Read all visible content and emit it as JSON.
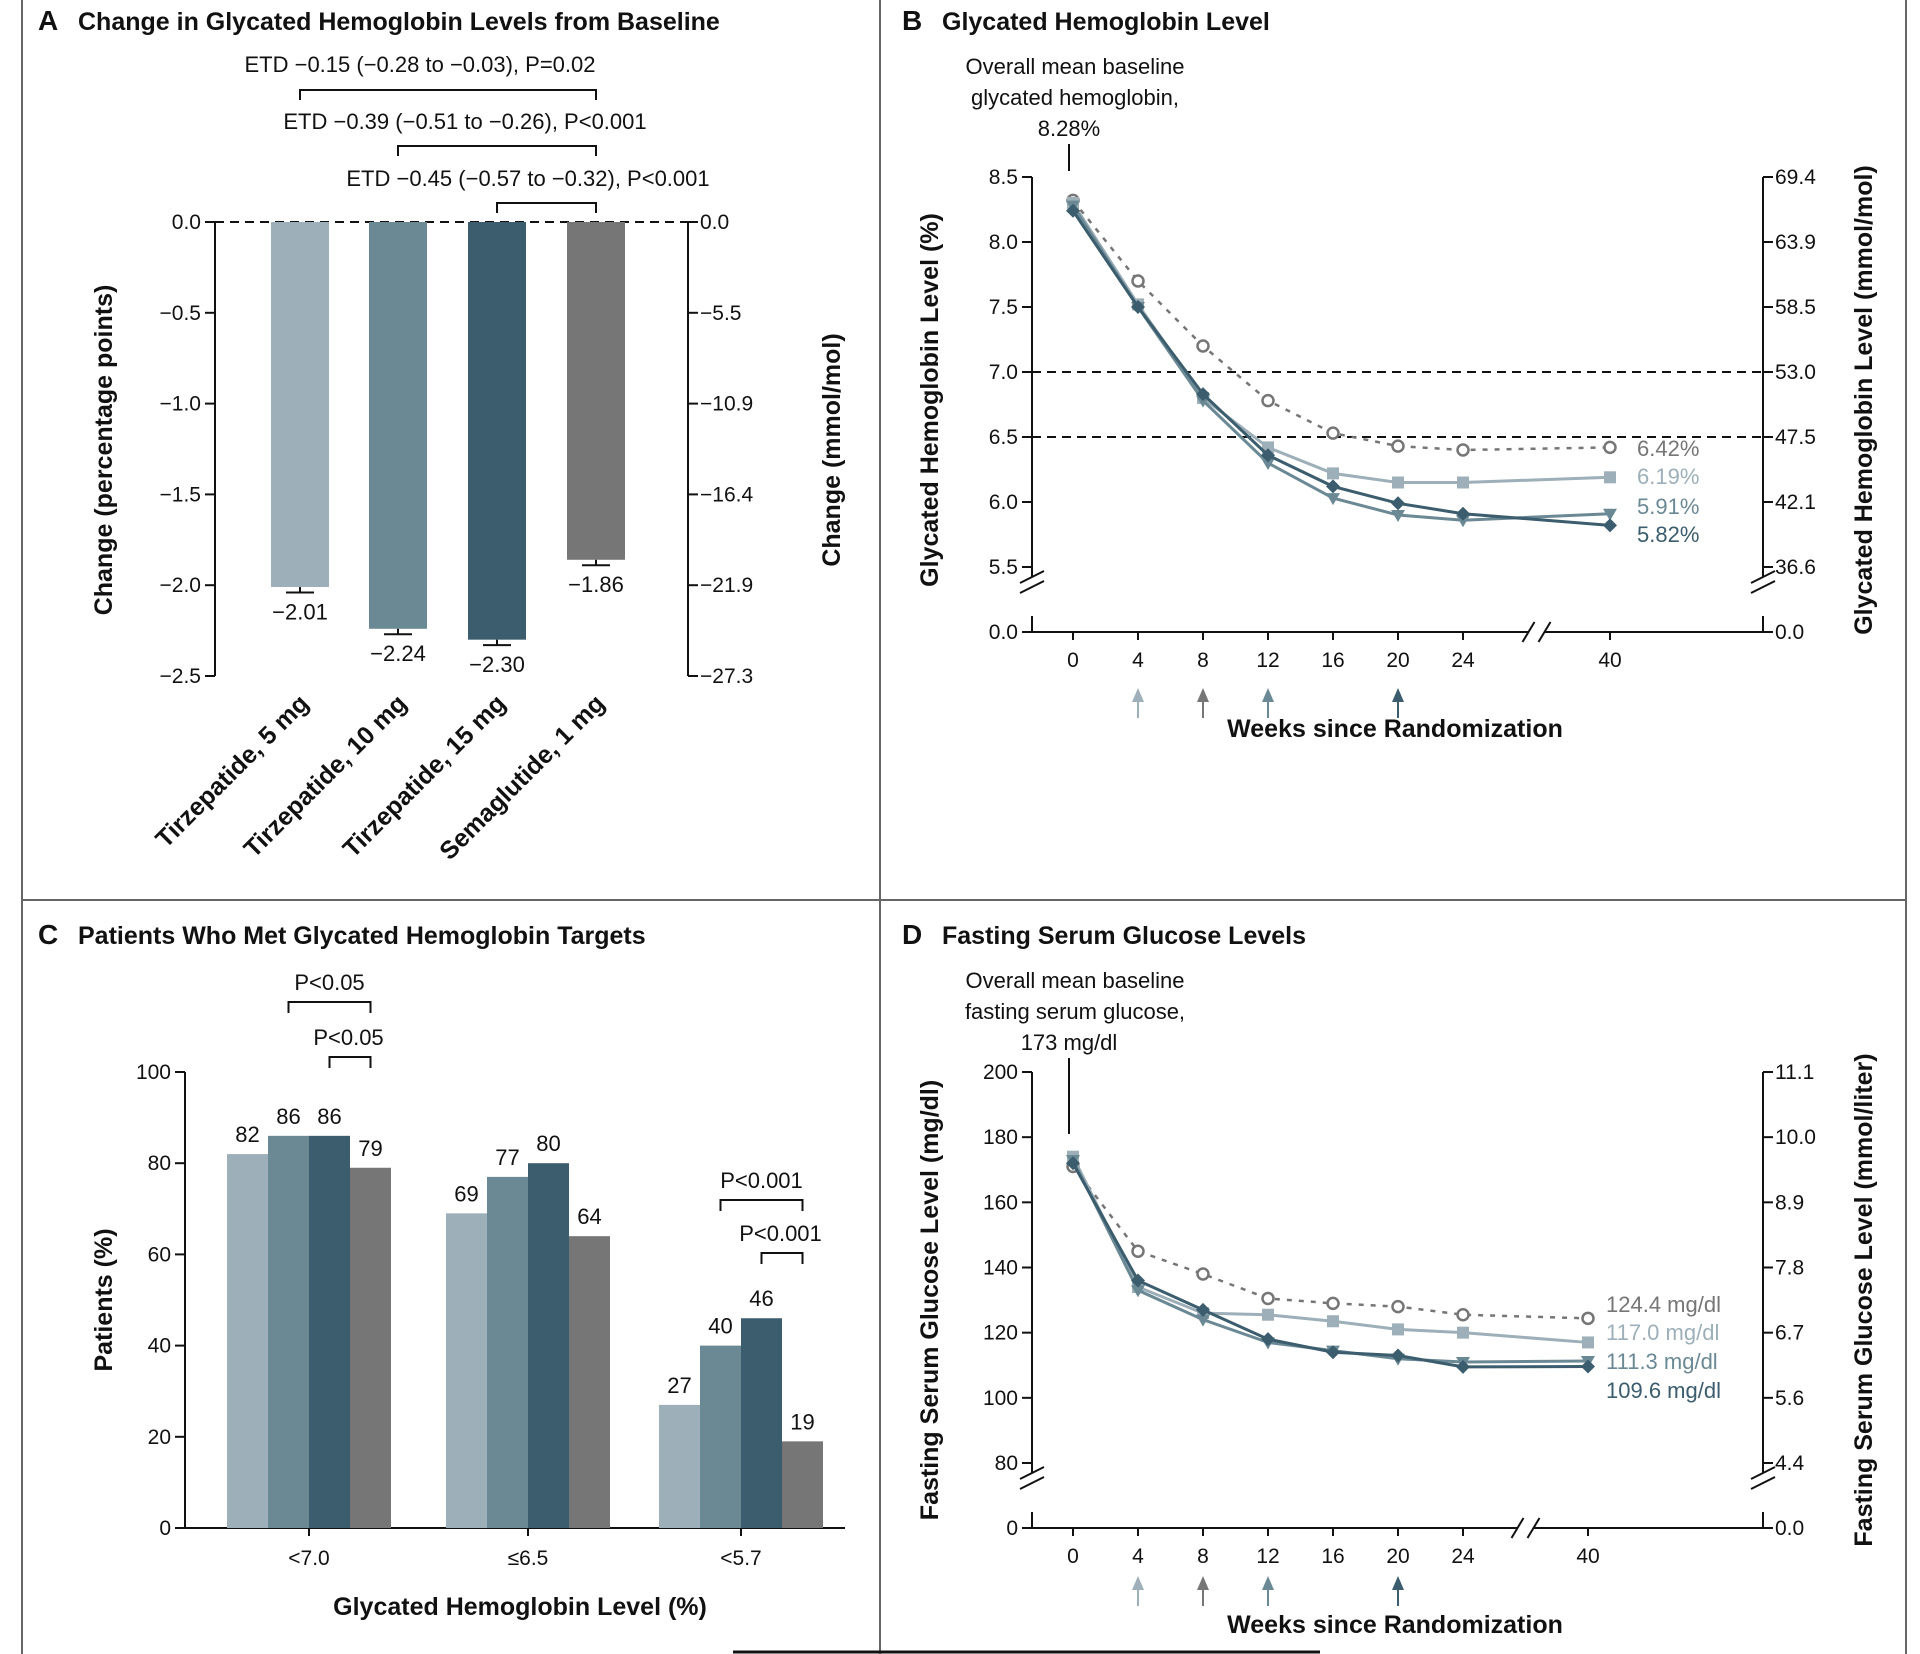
{
  "panels": {
    "A": {
      "letter": "A",
      "title": "Change in Glycated Hemoglobin Levels from Baseline"
    },
    "B": {
      "letter": "B",
      "title": "Glycated Hemoglobin Level"
    },
    "C": {
      "letter": "C",
      "title": "Patients Who Met Glycated Hemoglobin Targets"
    },
    "D": {
      "letter": "D",
      "title": "Fasting Serum Glucose Levels"
    }
  },
  "colors": {
    "tirzepatide_5mg": "#9dafb8",
    "tirzepatide_10mg": "#6b8995",
    "tirzepatide_15mg": "#3b5d6d",
    "semaglutide_1mg": "#767676",
    "border": "#666666"
  },
  "chart_data": [
    {
      "panel": "A",
      "type": "bar",
      "title": "Change in Glycated Hemoglobin Levels from Baseline",
      "categories": [
        "Tirzepatide, 5 mg",
        "Tirzepatide, 10 mg",
        "Tirzepatide, 15 mg",
        "Semaglutide, 1 mg"
      ],
      "values": [
        -2.01,
        -2.24,
        -2.3,
        -1.86
      ],
      "value_labels": [
        "−2.01",
        "−2.24",
        "−2.30",
        "−1.86"
      ],
      "errors": [
        0.03,
        0.03,
        0.03,
        0.03
      ],
      "ylabel": "Change (percentage points)",
      "ylim": [
        -2.5,
        0.0
      ],
      "yticks": [
        0.0,
        -0.5,
        -1.0,
        -1.5,
        -2.0,
        -2.5
      ],
      "ytick_labels": [
        "0.0",
        "−0.5",
        "−1.0",
        "−1.5",
        "−2.0",
        "−2.5"
      ],
      "y2label": "Change (mmol/mol)",
      "y2tick_labels": [
        "0.0",
        "−5.5",
        "−10.9",
        "−16.4",
        "−21.9",
        "−27.3"
      ],
      "comparisons": [
        {
          "text": "ETD −0.15 (−0.28 to −0.03), P=0.02",
          "from": 0,
          "to": 3
        },
        {
          "text": "ETD −0.39 (−0.51 to −0.26), P<0.001",
          "from": 1,
          "to": 3
        },
        {
          "text": "ETD −0.45 (−0.57 to −0.32), P<0.001",
          "from": 2,
          "to": 3
        }
      ]
    },
    {
      "panel": "B",
      "type": "line",
      "title": "Glycated Hemoglobin Level",
      "x": [
        0,
        4,
        8,
        12,
        16,
        20,
        24,
        40
      ],
      "xtick_labels": [
        "0",
        "4",
        "8",
        "12",
        "16",
        "20",
        "24",
        "40"
      ],
      "xlabel": "Weeks since Randomization",
      "ylabel": "Glycated Hemoglobin Level (%)",
      "y2label": "Glycated Hemoglobin Level (mmol/mol)",
      "yticks": [
        8.5,
        8.0,
        7.5,
        7.0,
        6.5,
        6.0,
        5.5
      ],
      "ytick_labels": [
        "8.5",
        "8.0",
        "7.5",
        "7.0",
        "6.5",
        "6.0",
        "5.5"
      ],
      "y2tick_labels": [
        "69.4",
        "63.9",
        "58.5",
        "53.0",
        "47.5",
        "42.1",
        "36.6"
      ],
      "zero_label": "0.0",
      "zero_label2": "0.0",
      "reference_lines": [
        7.0,
        6.5
      ],
      "baseline_annotation": [
        "Overall mean baseline",
        "glycated hemoglobin,",
        "8.28%"
      ],
      "arrows_at_weeks": [
        4,
        8,
        12,
        20
      ],
      "series": [
        {
          "key": "tirzepatide_5mg",
          "values": [
            8.3,
            7.52,
            6.8,
            6.42,
            6.22,
            6.15,
            6.15,
            6.19
          ],
          "end_label": "6.19%",
          "marker": "square"
        },
        {
          "key": "tirzepatide_10mg",
          "values": [
            8.28,
            7.5,
            6.78,
            6.3,
            6.03,
            5.9,
            5.86,
            5.91
          ],
          "end_label": "5.91%",
          "marker": "triangle"
        },
        {
          "key": "tirzepatide_15mg",
          "values": [
            8.24,
            7.5,
            6.83,
            6.36,
            6.12,
            5.99,
            5.91,
            5.82
          ],
          "end_label": "5.82%",
          "marker": "diamond"
        },
        {
          "key": "semaglutide_1mg",
          "values": [
            8.32,
            7.7,
            7.2,
            6.78,
            6.53,
            6.43,
            6.4,
            6.42
          ],
          "end_label": "6.42%",
          "marker": "circle-open",
          "dashed": true
        }
      ]
    },
    {
      "panel": "C",
      "type": "bar",
      "title": "Patients Who Met Glycated Hemoglobin Targets",
      "categories": [
        "<7.0",
        "≤6.5",
        "<5.7"
      ],
      "xlabel": "Glycated Hemoglobin Level (%)",
      "ylabel": "Patients (%)",
      "ylim": [
        0,
        100
      ],
      "yticks": [
        0,
        20,
        40,
        60,
        80,
        100
      ],
      "series": [
        {
          "key": "tirzepatide_5mg",
          "values": [
            82,
            69,
            27
          ]
        },
        {
          "key": "tirzepatide_10mg",
          "values": [
            86,
            77,
            40
          ]
        },
        {
          "key": "tirzepatide_15mg",
          "values": [
            86,
            80,
            46
          ]
        },
        {
          "key": "semaglutide_1mg",
          "values": [
            79,
            64,
            19
          ]
        }
      ],
      "comparisons": [
        {
          "group": 0,
          "text": "P<0.05",
          "from_series": 1,
          "to_series": 3
        },
        {
          "group": 0,
          "text": "P<0.05",
          "from_series": 2,
          "to_series": 3
        },
        {
          "group": 2,
          "text": "P<0.001",
          "from_series": 1,
          "to_series": 3
        },
        {
          "group": 2,
          "text": "P<0.001",
          "from_series": 2,
          "to_series": 3
        }
      ]
    },
    {
      "panel": "D",
      "type": "line",
      "title": "Fasting Serum Glucose Levels",
      "x": [
        0,
        4,
        8,
        12,
        16,
        20,
        24,
        40
      ],
      "xtick_labels": [
        "0",
        "4",
        "8",
        "12",
        "16",
        "20",
        "24",
        "40"
      ],
      "xlabel": "Weeks since Randomization",
      "ylabel": "Fasting Serum Glucose Level (mg/dl)",
      "y2label": "Fasting Serum Glucose Level (mmol/liter)",
      "yticks": [
        200,
        180,
        160,
        140,
        120,
        100,
        80
      ],
      "ytick_labels": [
        "200",
        "180",
        "160",
        "140",
        "120",
        "100",
        "80"
      ],
      "y2tick_labels": [
        "11.1",
        "10.0",
        "8.9",
        "7.8",
        "6.7",
        "5.6",
        "4.4"
      ],
      "zero_label": "0",
      "zero_label2": "0.0",
      "baseline_annotation": [
        "Overall mean baseline",
        "fasting serum glucose,",
        "173 mg/dl"
      ],
      "arrows_at_weeks": [
        4,
        8,
        12,
        20
      ],
      "series": [
        {
          "key": "tirzepatide_5mg",
          "values": [
            174,
            134,
            126,
            125.5,
            123.5,
            121,
            120,
            117.0
          ],
          "end_label": "117.0 mg/dl",
          "marker": "square"
        },
        {
          "key": "tirzepatide_10mg",
          "values": [
            173,
            133,
            124,
            117,
            114.5,
            112,
            111,
            111.3
          ],
          "end_label": "111.3 mg/dl",
          "marker": "triangle"
        },
        {
          "key": "tirzepatide_15mg",
          "values": [
            172,
            136,
            127,
            118,
            114,
            113,
            109.5,
            109.6
          ],
          "end_label": "109.6 mg/dl",
          "marker": "diamond"
        },
        {
          "key": "semaglutide_1mg",
          "values": [
            171,
            145,
            138,
            130.5,
            129,
            128,
            125.5,
            124.4
          ],
          "end_label": "124.4 mg/dl",
          "marker": "circle-open",
          "dashed": true
        }
      ]
    }
  ]
}
